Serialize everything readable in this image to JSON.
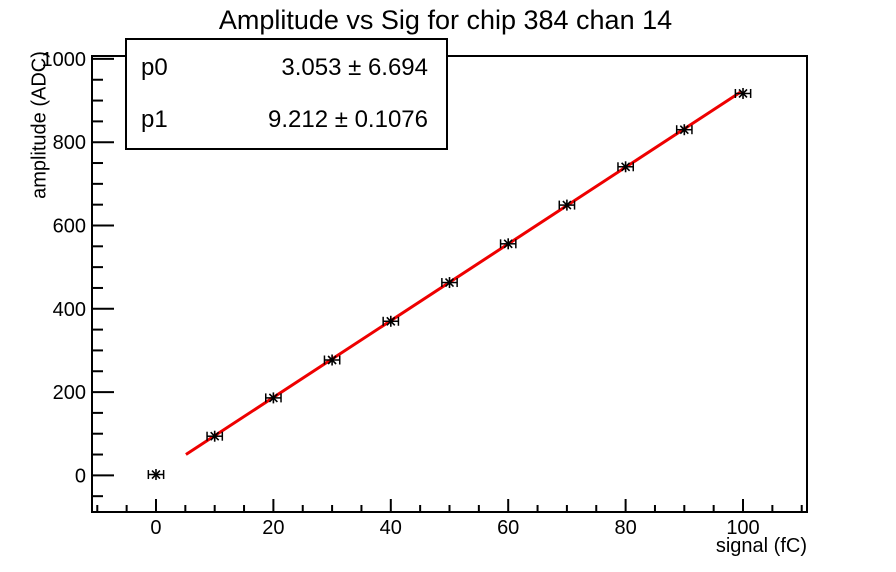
{
  "title": "Amplitude vs Sig for chip 384 chan 14",
  "stats_box": {
    "rows": [
      {
        "label": "p0",
        "value": "3.053 ± 6.694"
      },
      {
        "label": "p1",
        "value": "9.212 ± 0.1076"
      }
    ]
  },
  "chart_data": {
    "type": "scatter",
    "title": "Amplitude vs Sig for chip 384 chan 14",
    "xlabel": "signal (fC)",
    "ylabel": "amplitude (ADC)",
    "xlim": [
      -10.9,
      110.9
    ],
    "ylim": [
      -88,
      1007
    ],
    "grid": false,
    "x_major_ticks": [
      0,
      20,
      40,
      60,
      80,
      100
    ],
    "x_minor_step": 5,
    "y_major_ticks": [
      0,
      200,
      400,
      600,
      800,
      1000
    ],
    "y_minor_step": 50,
    "points": {
      "x": [
        0,
        10,
        20,
        30,
        40,
        50,
        60,
        70,
        80,
        90,
        100
      ],
      "y": [
        2,
        94,
        186,
        277,
        370,
        463,
        556,
        649,
        741,
        830,
        917
      ],
      "xerr": 1.3,
      "marker": "star-with-x-error-bars",
      "color": "#000000"
    },
    "fit_line": {
      "p0": 3.053,
      "p1": 9.212,
      "x_start": 5.1,
      "x_end": 99.6,
      "color": "#ee0000"
    }
  },
  "colors": {
    "background": "#ffffff",
    "axes": "#000000",
    "fit_line": "#ee0000"
  }
}
